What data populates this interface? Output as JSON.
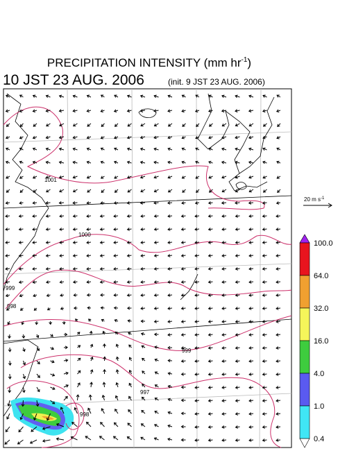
{
  "title": {
    "text": "PRECIPITATION INTENSITY (mm hr",
    "sup": "-1",
    "close": ")"
  },
  "valid_time": "10 JST 23 AUG. 2006",
  "init_time": "(init. 9 JST 23 AUG. 2006)",
  "vector_key": {
    "label": "20 m s",
    "sup": "-1"
  },
  "colorbar": {
    "labels": [
      "100.0",
      "64.0",
      "32.0",
      "16.0",
      "4.0",
      "1.0",
      "0.4"
    ],
    "colors": [
      "#e8141e",
      "#f0a030",
      "#f5f55a",
      "#3ecc3e",
      "#5a5af0",
      "#40e6f5"
    ]
  },
  "contour_labels": [
    "1001",
    "1000",
    "999",
    "998",
    "999",
    "997",
    "998"
  ]
}
